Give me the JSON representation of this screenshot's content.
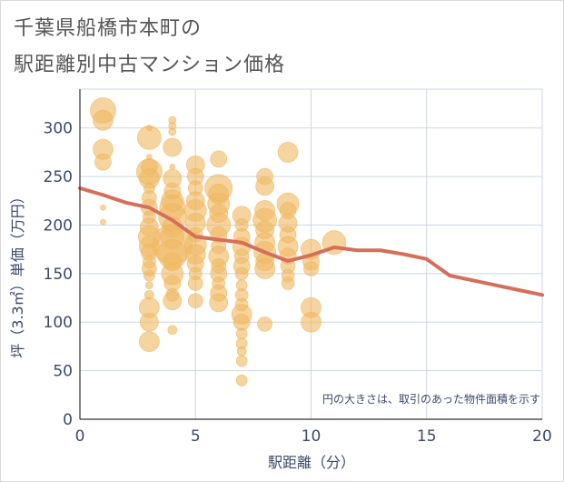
{
  "title": {
    "line1": "千葉県船橋市本町の",
    "line2": "駅距離別中古マンション価格"
  },
  "note": "円の大きさは、取引のあった物件面積を示す",
  "colors": {
    "bubble": "#f0b860",
    "line": "#d4705a",
    "grid": "#ccd6e0",
    "text": "#3a4a6a"
  },
  "chart_data": {
    "type": "scatter",
    "xlabel": "駅距離（分）",
    "ylabel": "坪（3.3㎡）単価（万円）",
    "xlim": [
      0,
      20
    ],
    "ylim": [
      0,
      340
    ],
    "xticks": [
      0,
      5,
      10,
      15,
      20
    ],
    "yticks": [
      0,
      50,
      100,
      150,
      200,
      250,
      300
    ],
    "points": [
      {
        "x": 1,
        "y": 318,
        "s": 14
      },
      {
        "x": 1,
        "y": 308,
        "s": 11
      },
      {
        "x": 1,
        "y": 278,
        "s": 11
      },
      {
        "x": 1,
        "y": 265,
        "s": 9
      },
      {
        "x": 1,
        "y": 218,
        "s": 3
      },
      {
        "x": 1,
        "y": 203,
        "s": 3
      },
      {
        "x": 3,
        "y": 300,
        "s": 3
      },
      {
        "x": 3,
        "y": 290,
        "s": 13
      },
      {
        "x": 3,
        "y": 270,
        "s": 3
      },
      {
        "x": 3,
        "y": 260,
        "s": 9
      },
      {
        "x": 3,
        "y": 255,
        "s": 14
      },
      {
        "x": 3,
        "y": 248,
        "s": 11
      },
      {
        "x": 3,
        "y": 238,
        "s": 6
      },
      {
        "x": 3,
        "y": 228,
        "s": 8
      },
      {
        "x": 3,
        "y": 218,
        "s": 9
      },
      {
        "x": 3,
        "y": 208,
        "s": 7
      },
      {
        "x": 3,
        "y": 198,
        "s": 10
      },
      {
        "x": 3,
        "y": 188,
        "s": 12
      },
      {
        "x": 3,
        "y": 178,
        "s": 11
      },
      {
        "x": 3,
        "y": 172,
        "s": 9
      },
      {
        "x": 3,
        "y": 162,
        "s": 7
      },
      {
        "x": 3,
        "y": 155,
        "s": 8
      },
      {
        "x": 3,
        "y": 148,
        "s": 6
      },
      {
        "x": 3,
        "y": 138,
        "s": 4
      },
      {
        "x": 3,
        "y": 128,
        "s": 5
      },
      {
        "x": 3,
        "y": 115,
        "s": 11
      },
      {
        "x": 3,
        "y": 100,
        "s": 10
      },
      {
        "x": 3,
        "y": 80,
        "s": 11
      },
      {
        "x": 4,
        "y": 308,
        "s": 4
      },
      {
        "x": 4,
        "y": 302,
        "s": 4
      },
      {
        "x": 4,
        "y": 296,
        "s": 4
      },
      {
        "x": 4,
        "y": 280,
        "s": 10
      },
      {
        "x": 4,
        "y": 260,
        "s": 3
      },
      {
        "x": 4,
        "y": 248,
        "s": 10
      },
      {
        "x": 4,
        "y": 235,
        "s": 9
      },
      {
        "x": 4,
        "y": 225,
        "s": 12
      },
      {
        "x": 4,
        "y": 218,
        "s": 14
      },
      {
        "x": 4,
        "y": 208,
        "s": 15
      },
      {
        "x": 4,
        "y": 198,
        "s": 11
      },
      {
        "x": 4,
        "y": 188,
        "s": 13
      },
      {
        "x": 4,
        "y": 180,
        "s": 22
      },
      {
        "x": 4,
        "y": 170,
        "s": 16
      },
      {
        "x": 4,
        "y": 162,
        "s": 10
      },
      {
        "x": 4,
        "y": 150,
        "s": 12
      },
      {
        "x": 4,
        "y": 140,
        "s": 9
      },
      {
        "x": 4,
        "y": 128,
        "s": 7
      },
      {
        "x": 4,
        "y": 122,
        "s": 10
      },
      {
        "x": 4,
        "y": 92,
        "s": 5
      },
      {
        "x": 5,
        "y": 262,
        "s": 10
      },
      {
        "x": 5,
        "y": 250,
        "s": 9
      },
      {
        "x": 5,
        "y": 238,
        "s": 8
      },
      {
        "x": 5,
        "y": 225,
        "s": 10
      },
      {
        "x": 5,
        "y": 215,
        "s": 12
      },
      {
        "x": 5,
        "y": 202,
        "s": 11
      },
      {
        "x": 5,
        "y": 190,
        "s": 8
      },
      {
        "x": 5,
        "y": 180,
        "s": 12
      },
      {
        "x": 5,
        "y": 170,
        "s": 11
      },
      {
        "x": 5,
        "y": 160,
        "s": 9
      },
      {
        "x": 5,
        "y": 150,
        "s": 7
      },
      {
        "x": 5,
        "y": 140,
        "s": 8
      },
      {
        "x": 5,
        "y": 122,
        "s": 8
      },
      {
        "x": 6,
        "y": 268,
        "s": 9
      },
      {
        "x": 6,
        "y": 238,
        "s": 15
      },
      {
        "x": 6,
        "y": 232,
        "s": 11
      },
      {
        "x": 6,
        "y": 222,
        "s": 12
      },
      {
        "x": 6,
        "y": 212,
        "s": 10
      },
      {
        "x": 6,
        "y": 200,
        "s": 13
      },
      {
        "x": 6,
        "y": 190,
        "s": 9
      },
      {
        "x": 6,
        "y": 178,
        "s": 8
      },
      {
        "x": 6,
        "y": 168,
        "s": 11
      },
      {
        "x": 6,
        "y": 158,
        "s": 8
      },
      {
        "x": 6,
        "y": 150,
        "s": 9
      },
      {
        "x": 6,
        "y": 140,
        "s": 7
      },
      {
        "x": 6,
        "y": 130,
        "s": 9
      },
      {
        "x": 6,
        "y": 120,
        "s": 10
      },
      {
        "x": 7,
        "y": 210,
        "s": 10
      },
      {
        "x": 7,
        "y": 200,
        "s": 7
      },
      {
        "x": 7,
        "y": 188,
        "s": 9
      },
      {
        "x": 7,
        "y": 178,
        "s": 10
      },
      {
        "x": 7,
        "y": 168,
        "s": 8
      },
      {
        "x": 7,
        "y": 158,
        "s": 9
      },
      {
        "x": 7,
        "y": 150,
        "s": 7
      },
      {
        "x": 7,
        "y": 138,
        "s": 6
      },
      {
        "x": 7,
        "y": 128,
        "s": 7
      },
      {
        "x": 7,
        "y": 118,
        "s": 7
      },
      {
        "x": 7,
        "y": 108,
        "s": 11
      },
      {
        "x": 7,
        "y": 100,
        "s": 9
      },
      {
        "x": 7,
        "y": 88,
        "s": 6
      },
      {
        "x": 7,
        "y": 78,
        "s": 6
      },
      {
        "x": 7,
        "y": 70,
        "s": 5
      },
      {
        "x": 7,
        "y": 60,
        "s": 6
      },
      {
        "x": 7,
        "y": 40,
        "s": 6
      },
      {
        "x": 8,
        "y": 250,
        "s": 9
      },
      {
        "x": 8,
        "y": 240,
        "s": 10
      },
      {
        "x": 8,
        "y": 215,
        "s": 11
      },
      {
        "x": 8,
        "y": 205,
        "s": 13
      },
      {
        "x": 8,
        "y": 195,
        "s": 10
      },
      {
        "x": 8,
        "y": 182,
        "s": 11
      },
      {
        "x": 8,
        "y": 172,
        "s": 12
      },
      {
        "x": 8,
        "y": 162,
        "s": 10
      },
      {
        "x": 8,
        "y": 155,
        "s": 11
      },
      {
        "x": 8,
        "y": 98,
        "s": 8
      },
      {
        "x": 9,
        "y": 275,
        "s": 11
      },
      {
        "x": 9,
        "y": 222,
        "s": 12
      },
      {
        "x": 9,
        "y": 215,
        "s": 9
      },
      {
        "x": 9,
        "y": 202,
        "s": 10
      },
      {
        "x": 9,
        "y": 190,
        "s": 9
      },
      {
        "x": 9,
        "y": 178,
        "s": 11
      },
      {
        "x": 9,
        "y": 168,
        "s": 9
      },
      {
        "x": 9,
        "y": 158,
        "s": 8
      },
      {
        "x": 9,
        "y": 148,
        "s": 7
      },
      {
        "x": 9,
        "y": 140,
        "s": 7
      },
      {
        "x": 10,
        "y": 175,
        "s": 11
      },
      {
        "x": 10,
        "y": 162,
        "s": 9
      },
      {
        "x": 10,
        "y": 155,
        "s": 8
      },
      {
        "x": 10,
        "y": 115,
        "s": 11
      },
      {
        "x": 10,
        "y": 100,
        "s": 11
      },
      {
        "x": 11,
        "y": 182,
        "s": 13
      }
    ],
    "line": {
      "x": [
        0,
        1,
        2,
        3,
        4,
        5,
        6,
        7,
        8,
        9,
        10,
        11,
        12,
        13,
        14,
        15,
        16,
        17,
        18,
        19,
        20
      ],
      "y": [
        238,
        231,
        223,
        218,
        205,
        188,
        185,
        182,
        172,
        163,
        169,
        177,
        174,
        174,
        170,
        165,
        148,
        143,
        138,
        133,
        128
      ]
    }
  }
}
